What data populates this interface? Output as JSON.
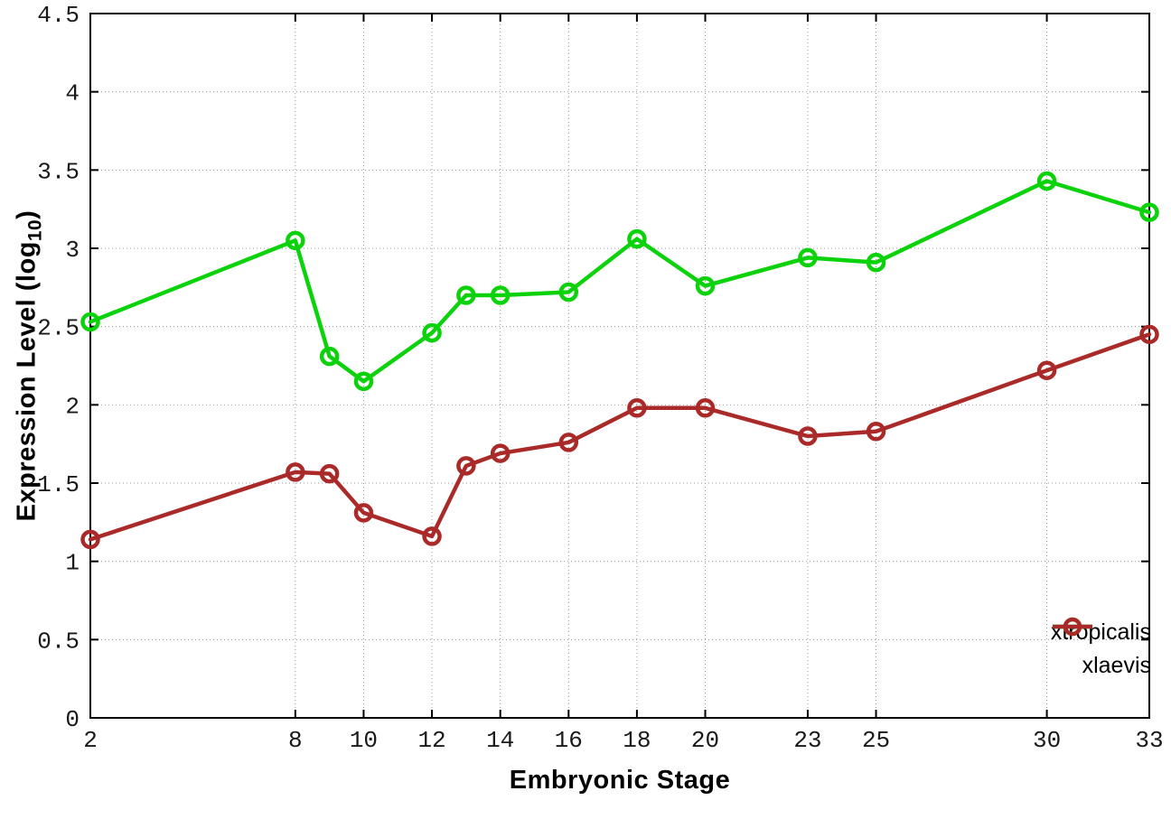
{
  "chart_data": {
    "type": "line",
    "title": "",
    "xlabel": "Embryonic Stage",
    "ylabel": "Expression Level (log10)",
    "ylabel_parts": {
      "prefix": "Expression Level (log",
      "sub": "10",
      "suffix": ")"
    },
    "xlim": [
      2,
      33
    ],
    "ylim": [
      0,
      4.5
    ],
    "x_ticks": [
      2,
      8,
      10,
      12,
      14,
      16,
      18,
      20,
      23,
      25,
      30,
      33
    ],
    "y_ticks": [
      0,
      0.5,
      1,
      1.5,
      2,
      2.5,
      3,
      3.5,
      4,
      4.5
    ],
    "y_tick_labels": [
      "0",
      "0.5",
      "1",
      "1.5",
      "2",
      "2.5",
      "3",
      "3.5",
      "4",
      "4.5"
    ],
    "grid": "dotted",
    "legend_position": "bottom-right",
    "x": [
      2,
      8,
      9,
      10,
      12,
      13,
      14,
      16,
      18,
      20,
      23,
      25,
      30,
      33
    ],
    "series": [
      {
        "name": "xtropicalis",
        "color": "#0cd20c",
        "marker": "open-circle",
        "values": [
          2.53,
          3.05,
          2.31,
          2.15,
          2.46,
          2.7,
          2.7,
          2.72,
          3.06,
          2.76,
          2.94,
          2.91,
          3.43,
          3.23
        ]
      },
      {
        "name": "xlaevis",
        "color": "#a92a28",
        "marker": "open-circle",
        "values": [
          1.14,
          1.57,
          1.56,
          1.31,
          1.16,
          1.61,
          1.69,
          1.76,
          1.98,
          1.98,
          1.8,
          1.83,
          2.22,
          2.45
        ]
      }
    ],
    "style": {
      "border_color": "#000000",
      "tick_label_color": "#1a1a1a",
      "grid_color": "#9a9a9a",
      "background": "#ffffff"
    }
  }
}
